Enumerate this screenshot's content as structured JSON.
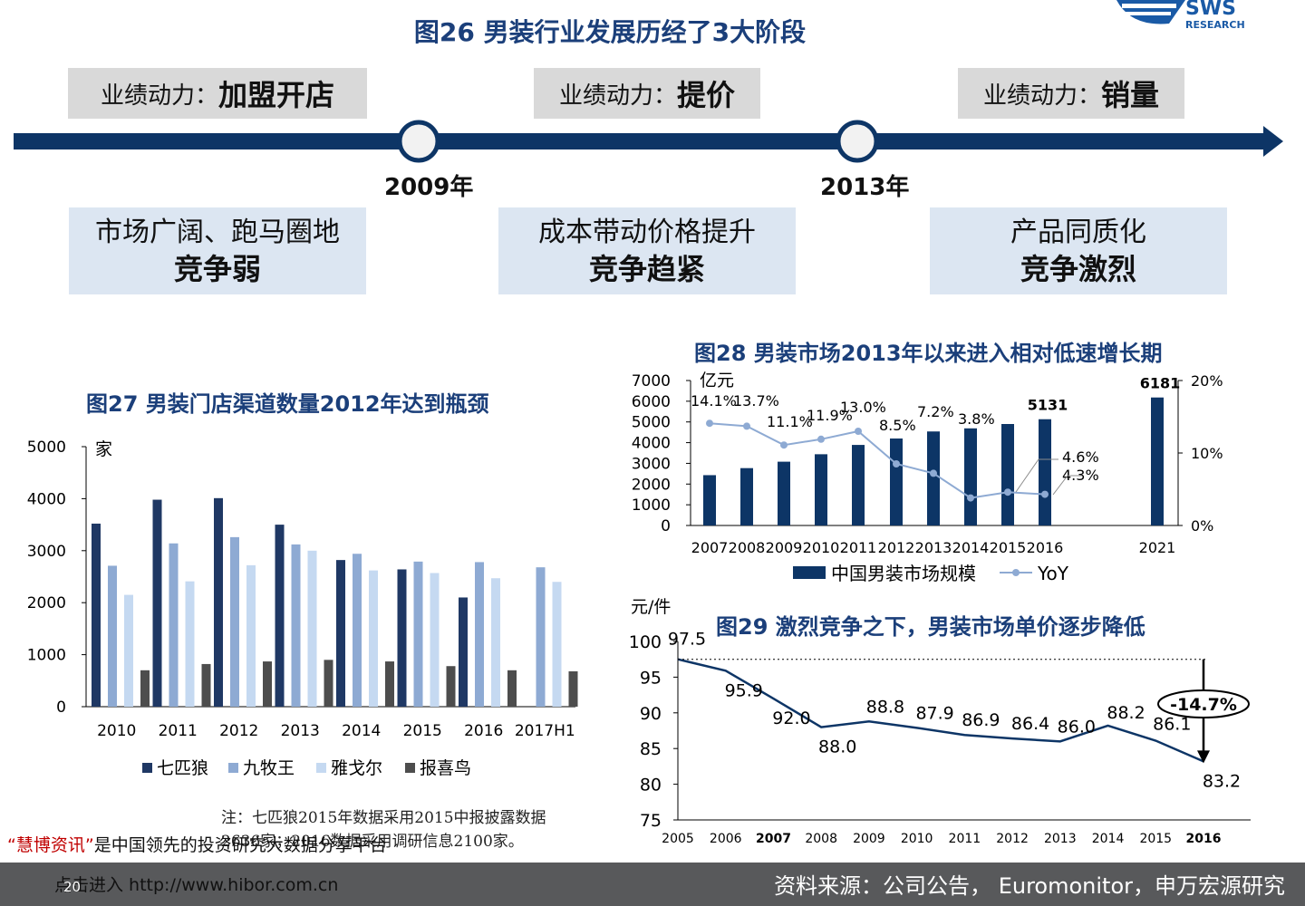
{
  "header": {
    "title": "图26 男装行业发展历经了3大阶段",
    "logo_text": "RESEARCH"
  },
  "timeline": {
    "phases": [
      {
        "label": "业绩动力：",
        "strong": "加盟开店",
        "desc": "市场广阔、跑马圈地",
        "desc_strong": "竞争弱"
      },
      {
        "label": "业绩动力：",
        "strong": "提价",
        "desc": "成本带动价格提升",
        "desc_strong": "竞争趋紧"
      },
      {
        "label": "业绩动力：",
        "strong": "销量",
        "desc": "产品同质化",
        "desc_strong": "竞争激烈"
      }
    ],
    "milestones": [
      "2009年",
      "2013年"
    ],
    "colors": {
      "line": "#0d3566",
      "box_top": "#d9d9d9",
      "box_bottom": "#dce6f2"
    }
  },
  "chart_data": [
    {
      "id": "fig27",
      "type": "bar",
      "title": "图27 男装门店渠道数量2012年达到瓶颈",
      "ylabel": "家",
      "ylim": [
        0,
        5000
      ],
      "yticks": [
        "0",
        "1000",
        "2000",
        "3000",
        "4000",
        "5000"
      ],
      "categories": [
        "2010",
        "2011",
        "2012",
        "2013",
        "2014",
        "2015",
        "2016",
        "2017H1"
      ],
      "series": [
        {
          "name": "七匹狼",
          "color": "#1f3864",
          "values": [
            3520,
            3980,
            4010,
            3500,
            2820,
            2640,
            2100,
            null
          ]
        },
        {
          "name": "九牧王",
          "color": "#8eaad3",
          "values": [
            2710,
            3140,
            3260,
            3120,
            2940,
            2790,
            2780,
            2680
          ]
        },
        {
          "name": "雅戈尔",
          "color": "#c5d9f1",
          "values": [
            2150,
            2410,
            2720,
            3000,
            2620,
            2570,
            2470,
            2400
          ]
        },
        {
          "name": "报喜鸟",
          "color": "#4d4d4d",
          "values": [
            700,
            820,
            870,
            900,
            870,
            780,
            700,
            680
          ]
        }
      ],
      "note": "注：七匹狼2015年数据采用2015中报披露数据2636家；2016数据采用调研信息2100家。"
    },
    {
      "id": "fig28",
      "type": "bar+line",
      "title": "图28 男装市场2013年以来进入相对低速增长期",
      "ylabel": "亿元",
      "ylim": [
        0,
        7000
      ],
      "yticks": [
        "0",
        "1000",
        "2000",
        "3000",
        "4000",
        "5000",
        "6000",
        "7000"
      ],
      "y2lim": [
        0,
        20
      ],
      "y2ticks": [
        "0%",
        "10%",
        "20%"
      ],
      "categories": [
        "2007",
        "2008",
        "2009",
        "2010",
        "2011",
        "2012",
        "2013",
        "2014",
        "2015",
        "2016",
        "2021"
      ],
      "bar_series": {
        "name": "中国男装市场规模",
        "color": "#0d3566",
        "values": [
          2430,
          2770,
          3080,
          3440,
          3890,
          4200,
          4540,
          4690,
          4900,
          5131,
          6181
        ]
      },
      "bar_value_labels": [
        "",
        "",
        "",
        "",
        "",
        "",
        "",
        "",
        "",
        "5131",
        "6181"
      ],
      "line_series": {
        "name": "YoY",
        "color": "#8eaad3",
        "values": [
          14.1,
          13.7,
          11.1,
          11.9,
          13.0,
          8.5,
          7.2,
          3.8,
          4.6,
          4.3
        ]
      },
      "line_value_labels": [
        "14.1%",
        "13.7%",
        "11.1%",
        "11.9%",
        "13.0%",
        "8.5%",
        "7.2%",
        "3.8%",
        "4.6%",
        "4.3%"
      ]
    },
    {
      "id": "fig29",
      "type": "line",
      "title": "图29 激烈竞争之下，男装市场单价逐步降低",
      "ylabel": "元/件",
      "ylim": [
        75,
        100
      ],
      "yticks": [
        "75",
        "80",
        "85",
        "90",
        "95",
        "100"
      ],
      "x": [
        "2005",
        "2006",
        "2007",
        "2008",
        "2009",
        "2010",
        "2011",
        "2012",
        "2013",
        "2014",
        "2015",
        "2016"
      ],
      "bold_x": [
        "2007",
        "2016"
      ],
      "series": [
        {
          "color": "#0d3566",
          "values": [
            97.5,
            95.9,
            92.0,
            88.0,
            88.8,
            87.9,
            86.9,
            86.4,
            86.0,
            88.2,
            86.1,
            83.2
          ]
        }
      ],
      "value_labels": [
        "97.5",
        "95.9",
        "92.0",
        "88.0",
        "88.8",
        "87.9",
        "86.9",
        "86.4",
        "86.0",
        "88.2",
        "86.1",
        "83.2"
      ],
      "annotation": "-14.7%"
    }
  ],
  "footer": {
    "source": "资料来源：公司公告， Euromonitor，申万宏源研究",
    "disclaimer_red": "“慧博资讯”",
    "disclaimer_rest": "是中国领先的投资研究大数据分享平台",
    "url": "点击进入 http://www.hibor.com.cn",
    "page": "20"
  }
}
